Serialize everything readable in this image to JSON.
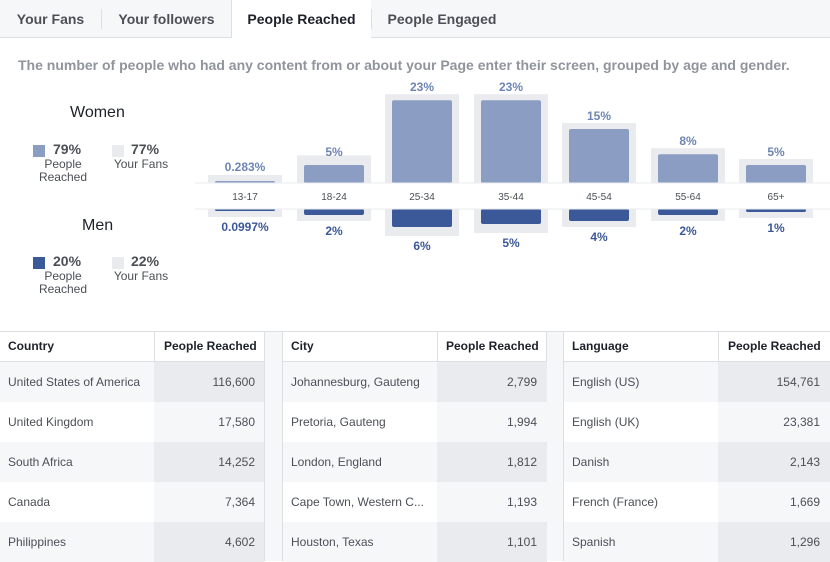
{
  "tabs": [
    {
      "label": "Your Fans"
    },
    {
      "label": "Your followers"
    },
    {
      "label": "People Reached"
    },
    {
      "label": "People Engaged"
    }
  ],
  "description": "The number of people who had any content from or about your Page enter their screen, grouped by age and gender.",
  "women": {
    "title": "Women",
    "reached_pct": "79%",
    "reached_label_1": "People",
    "reached_label_2": "Reached",
    "fans_pct": "77%",
    "fans_label": "Your Fans"
  },
  "men": {
    "title": "Men",
    "reached_pct": "20%",
    "reached_label_1": "People",
    "reached_label_2": "Reached",
    "fans_pct": "22%",
    "fans_label": "Your Fans"
  },
  "colors": {
    "women": "#8b9dc3",
    "men": "#3b5998",
    "fans": "#e9ebee",
    "label_women": "#6d84b4",
    "label_men": "#3b5998"
  },
  "chart_data": {
    "type": "bar",
    "categories": [
      "13-17",
      "18-24",
      "25-34",
      "35-44",
      "45-54",
      "55-64",
      "65+"
    ],
    "series": [
      {
        "name": "Women",
        "values": [
          0.283,
          5,
          23,
          23,
          15,
          8,
          5
        ],
        "labels": [
          "0.283%",
          "5%",
          "23%",
          "23%",
          "15%",
          "8%",
          "5%"
        ]
      },
      {
        "name": "Men",
        "values": [
          0.0997,
          2,
          6,
          5,
          4,
          2,
          1
        ],
        "labels": [
          "0.0997%",
          "2%",
          "6%",
          "5%",
          "4%",
          "2%",
          "1%"
        ]
      }
    ],
    "fans_women": [
      0.3,
      6,
      23,
      23,
      15,
      8,
      5
    ],
    "fans_men": [
      0.1,
      2,
      7,
      6,
      4,
      2,
      1
    ]
  },
  "tables": {
    "country": {
      "header": "Country",
      "value_header": "People Reached",
      "rows": [
        {
          "name": "United States of America",
          "value": "116,600"
        },
        {
          "name": "United Kingdom",
          "value": "17,580"
        },
        {
          "name": "South Africa",
          "value": "14,252"
        },
        {
          "name": "Canada",
          "value": "7,364"
        },
        {
          "name": "Philippines",
          "value": "4,602"
        }
      ]
    },
    "city": {
      "header": "City",
      "value_header": "People Reached",
      "rows": [
        {
          "name": "Johannesburg, Gauteng",
          "value": "2,799"
        },
        {
          "name": "Pretoria, Gauteng",
          "value": "1,994"
        },
        {
          "name": "London, England",
          "value": "1,812"
        },
        {
          "name": "Cape Town, Western C...",
          "value": "1,193"
        },
        {
          "name": "Houston, Texas",
          "value": "1,101"
        }
      ]
    },
    "language": {
      "header": "Language",
      "value_header": "People Reached",
      "rows": [
        {
          "name": "English (US)",
          "value": "154,761"
        },
        {
          "name": "English (UK)",
          "value": "23,381"
        },
        {
          "name": "Danish",
          "value": "2,143"
        },
        {
          "name": "French (France)",
          "value": "1,669"
        },
        {
          "name": "Spanish",
          "value": "1,296"
        }
      ]
    }
  }
}
